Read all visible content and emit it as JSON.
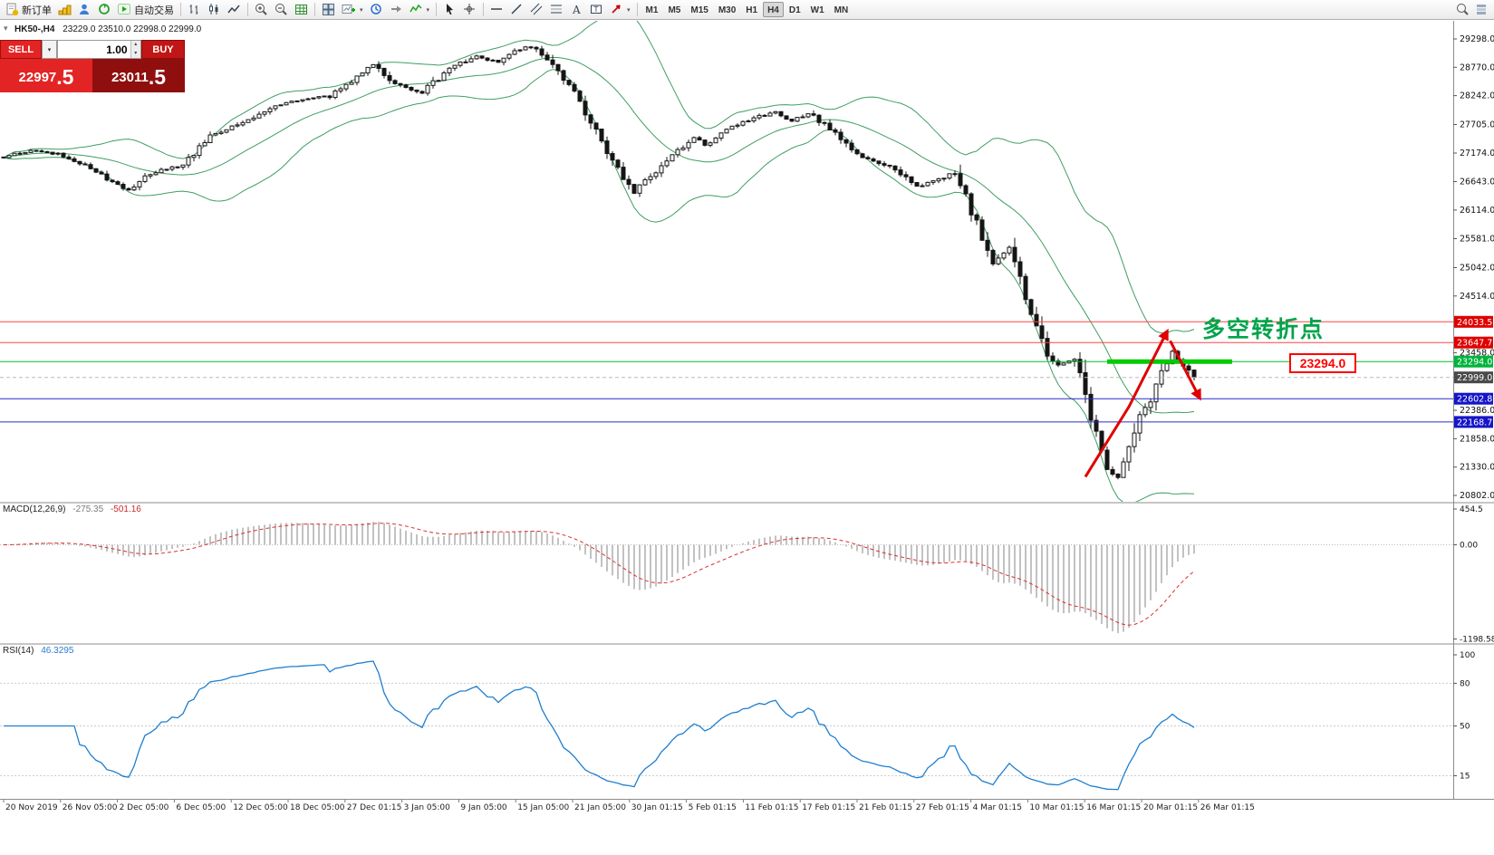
{
  "toolbar": {
    "new_order_label": "新订单",
    "autotrading_label": "自动交易",
    "timeframes": [
      "M1",
      "M5",
      "M15",
      "M30",
      "H1",
      "H4",
      "D1",
      "W1",
      "MN"
    ],
    "active_timeframe": "H4"
  },
  "symbol_bar": {
    "symbol_period": "HK50-,H4",
    "ohlc": "23229.0 23510.0 22998.0 22999.0"
  },
  "trade_panel": {
    "sell_label": "SELL",
    "buy_label": "BUY",
    "volume": "1.00",
    "sell_price_main": "22997",
    "sell_price_frac": ".5",
    "buy_price_main": "23011",
    "buy_price_frac": ".5"
  },
  "annotations": {
    "turning_point_text": "多空转折点",
    "price_box_label": "23294.0",
    "annotation_color": "#00a44a",
    "box_color": "#fe0000"
  },
  "price_axis": {
    "ticks": [
      29298.0,
      28770.0,
      28242.0,
      27705.0,
      27174.0,
      26643.0,
      26114.0,
      25581.0,
      25042.0,
      24514.0,
      23458.0,
      22386.0,
      21858.0,
      21330.0,
      20802.0
    ],
    "badges": [
      {
        "value": "24033.5",
        "price": 24033.5,
        "color": "#e00000"
      },
      {
        "value": "23647.7",
        "price": 23647.7,
        "color": "#e00000"
      },
      {
        "value": "23294.0",
        "price": 23294.0,
        "color": "#00b43c"
      },
      {
        "value": "22999.0",
        "price": 22999.0,
        "color": "#4a4a4a"
      },
      {
        "value": "22602.8",
        "price": 22602.8,
        "color": "#1515c8"
      },
      {
        "value": "22168.7",
        "price": 22168.7,
        "color": "#1515c8"
      }
    ]
  },
  "hlines": [
    {
      "price": 24033.5,
      "color": "#ff4545",
      "style": "solid"
    },
    {
      "price": 23647.7,
      "color": "#ff4545",
      "style": "solid"
    },
    {
      "price": 23294.0,
      "color": "#00c228",
      "style": "solid"
    },
    {
      "price": 22999.0,
      "color": "#b9b9b9",
      "style": "dash"
    },
    {
      "price": 22602.8,
      "color": "#2a2ac8",
      "style": "solid"
    },
    {
      "price": 22168.7,
      "color": "#2a2ac8",
      "style": "solid"
    }
  ],
  "shapes": {
    "support_band": {
      "price": 23294.0,
      "from_index": 203,
      "to_index": 226,
      "color": "#00cc00"
    },
    "arrow_up": {
      "color": "#e00000",
      "points": [
        [
          199,
          21150
        ],
        [
          207,
          22450
        ],
        [
          214,
          23850
        ]
      ]
    },
    "arrow_down": {
      "color": "#e00000",
      "points": [
        [
          214.6,
          23680
        ],
        [
          220,
          22620
        ]
      ]
    }
  },
  "macd_panel": {
    "label_name": "MACD(12,26,9)",
    "value_main": "-275.35",
    "value_signal": "-501.16",
    "axis_ticks": [
      "454.5",
      "0.00",
      "-1198.58"
    ]
  },
  "rsi_panel": {
    "label_name": "RSI(14)",
    "value": "46.3295",
    "axis_ticks": [
      "100",
      "80",
      "50",
      "15"
    ],
    "levels": [
      80,
      50,
      15
    ]
  },
  "time_axis": [
    "20 Nov 2019",
    "26 Nov 05:00",
    "2 Dec 05:00",
    "6 Dec 05:00",
    "12 Dec 05:00",
    "18 Dec 05:00",
    "27 Dec 01:15",
    "3 Jan 05:00",
    "9 Jan 05:00",
    "15 Jan 05:00",
    "21 Jan 05:00",
    "30 Jan 01:15",
    "5 Feb 01:15",
    "11 Feb 01:15",
    "17 Feb 01:15",
    "21 Feb 01:15",
    "27 Feb 01:15",
    "4 Mar 01:15",
    "10 Mar 01:15",
    "16 Mar 01:15",
    "20 Mar 01:15",
    "26 Mar 01:15"
  ],
  "chart_data": {
    "type": "candlestick",
    "symbol": "HK50-",
    "timeframe": "H4",
    "num_candles": 220,
    "last_close": 22999.0,
    "y_range": [
      20802,
      29298
    ],
    "indicators": {
      "bollinger_period": 20,
      "bollinger_dev": 2,
      "macd": [
        12,
        26,
        9
      ],
      "rsi_period": 14
    },
    "price_anchors": [
      [
        0,
        27100
      ],
      [
        5,
        27230
      ],
      [
        10,
        27150
      ],
      [
        15,
        26950
      ],
      [
        19,
        26700
      ],
      [
        23,
        26480
      ],
      [
        27,
        26800
      ],
      [
        33,
        26950
      ],
      [
        38,
        27480
      ],
      [
        45,
        27800
      ],
      [
        50,
        28050
      ],
      [
        55,
        28180
      ],
      [
        60,
        28230
      ],
      [
        64,
        28520
      ],
      [
        68,
        28830
      ],
      [
        72,
        28480
      ],
      [
        77,
        28300
      ],
      [
        82,
        28750
      ],
      [
        87,
        28980
      ],
      [
        91,
        28870
      ],
      [
        94,
        29060
      ],
      [
        97,
        29160
      ],
      [
        100,
        28920
      ],
      [
        103,
        28550
      ],
      [
        106,
        28150
      ],
      [
        109,
        27560
      ],
      [
        112,
        27050
      ],
      [
        114,
        26700
      ],
      [
        116,
        26420
      ],
      [
        118,
        26650
      ],
      [
        121,
        26950
      ],
      [
        124,
        27220
      ],
      [
        127,
        27460
      ],
      [
        129,
        27310
      ],
      [
        132,
        27560
      ],
      [
        135,
        27720
      ],
      [
        139,
        27860
      ],
      [
        142,
        27930
      ],
      [
        145,
        27780
      ],
      [
        148,
        27920
      ],
      [
        152,
        27640
      ],
      [
        155,
        27350
      ],
      [
        158,
        27120
      ],
      [
        162,
        26960
      ],
      [
        165,
        26780
      ],
      [
        168,
        26540
      ],
      [
        172,
        26680
      ],
      [
        175,
        26820
      ],
      [
        177,
        26350
      ],
      [
        180,
        25560
      ],
      [
        182,
        25130
      ],
      [
        185,
        25380
      ],
      [
        187,
        24850
      ],
      [
        190,
        23950
      ],
      [
        192,
        23450
      ],
      [
        194,
        23250
      ],
      [
        197,
        23320
      ],
      [
        199,
        22650
      ],
      [
        201,
        21900
      ],
      [
        203,
        21350
      ],
      [
        205,
        21120
      ],
      [
        207,
        21750
      ],
      [
        209,
        22280
      ],
      [
        211,
        22620
      ],
      [
        213,
        23120
      ],
      [
        215,
        23480
      ],
      [
        217,
        23230
      ],
      [
        219,
        22999
      ]
    ]
  }
}
